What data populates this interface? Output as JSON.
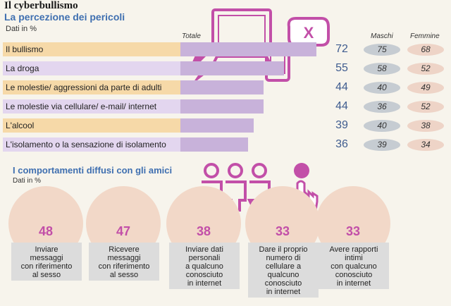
{
  "page": {
    "title": "Il cyberbullismo",
    "subtitle": "La percezione dei pericoli",
    "unit": "Dati in %",
    "col_total": "Totale",
    "col_male": "Maschi",
    "col_female": "Femmine",
    "subtitle2": "I comportamenti diffusi con gli amici",
    "unit2": "Dati in %"
  },
  "colors": {
    "bar": "#c8b2da",
    "label_orange": "#f6d9a8",
    "label_purple": "#e3d6ef",
    "oval_male": "#c6ccd2",
    "oval_female": "#eed4c7",
    "value_text": "#3f5c8f",
    "accent_pink": "#c24fa8"
  },
  "chart_data": [
    {
      "type": "bar",
      "orientation": "horizontal",
      "title": "La percezione dei pericoli",
      "unit": "Dati in %",
      "categories": [
        "Il bullismo",
        "La droga",
        "Le molestie/ aggressioni da parte di adulti",
        "Le molestie via cellulare/ e-mail/ internet",
        "L'alcool",
        "L'isolamento o la sensazione di isolamento"
      ],
      "series": [
        {
          "name": "Totale",
          "values": [
            72,
            55,
            44,
            44,
            39,
            36
          ]
        },
        {
          "name": "Maschi",
          "values": [
            75,
            58,
            40,
            36,
            40,
            39
          ]
        },
        {
          "name": "Femmine",
          "values": [
            68,
            52,
            49,
            52,
            38,
            34
          ]
        }
      ],
      "xlim": [
        0,
        80
      ]
    },
    {
      "type": "bubble",
      "title": "I comportamenti diffusi con gli amici",
      "unit": "Dati in %",
      "categories": [
        "Inviare messaggi con riferimento al sesso",
        "Ricevere messaggi con riferimento al sesso",
        "Inviare dati personali a qualcuno conosciuto in internet",
        "Dare il proprio numero di cellulare a qualcuno conosciuto in internet",
        "Avere rapporti intimi con qualcuno conosciuto in internet"
      ],
      "values": [
        48,
        47,
        38,
        33,
        33
      ],
      "lines": [
        [
          "Inviare",
          "messaggi",
          "con riferimento",
          "al sesso"
        ],
        [
          "Ricevere",
          "messaggi",
          "con riferimento",
          "al sesso"
        ],
        [
          "Inviare dati",
          "personali",
          "a qualcuno",
          "conosciuto",
          "in internet"
        ],
        [
          "Dare il proprio",
          "numero di",
          "cellulare a",
          "qualcuno",
          "conosciuto",
          "in internet"
        ],
        [
          "Avere rapporti",
          "intimi",
          "con qualcuno",
          "conosciuto",
          "in internet"
        ]
      ]
    }
  ]
}
